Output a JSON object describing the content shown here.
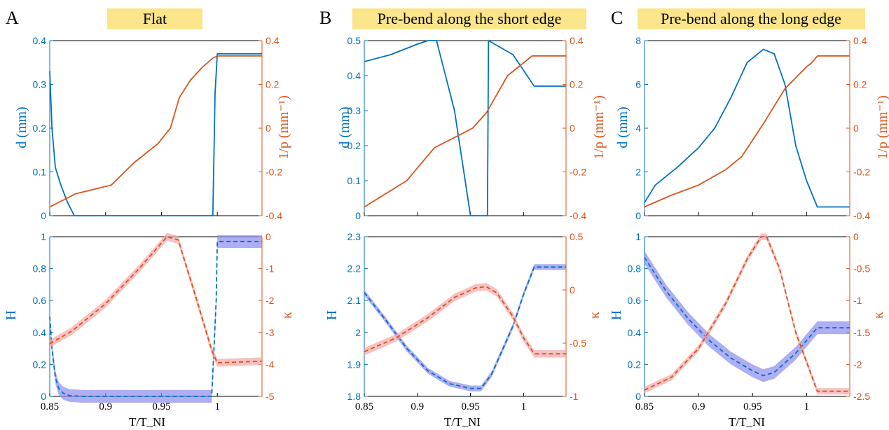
{
  "panels": [
    {
      "letter": "A",
      "title": "Flat"
    },
    {
      "letter": "B",
      "title": "Pre-bend along the short edge"
    },
    {
      "letter": "C",
      "title": "Pre-bend along the long edge"
    }
  ],
  "labels": {
    "d_axis": "d (mm)",
    "p_axis": "1/p (mm⁻¹)",
    "H_axis": "H",
    "kappa_axis": "κ",
    "x_axis": "T/T_NI"
  },
  "colors": {
    "blue": "#0072bd",
    "orange": "#d95319",
    "band_blue": "#8c8cf0",
    "band_red": "#f4a6a6",
    "title_bg": "#fbe58b"
  },
  "chart_data": [
    {
      "type": "line",
      "panel": "A",
      "row": "top",
      "xlim": [
        0.85,
        1.04
      ],
      "xticks": [
        "0.85",
        "0.9",
        "0.95",
        "1"
      ],
      "ylim_left": [
        0,
        0.4
      ],
      "yticks_left": [
        "0",
        "0.1",
        "0.2",
        "0.3",
        "0.4"
      ],
      "ylim_right": [
        -0.4,
        0.4
      ],
      "yticks_right": [
        "-0.4",
        "-0.2",
        "0",
        "0.2",
        "0.4"
      ],
      "series": [
        {
          "axis": "left",
          "style": "solid",
          "x": [
            0.85,
            0.852,
            0.855,
            0.86,
            0.866,
            0.872,
            0.88,
            0.9,
            0.95,
            0.99,
            0.996,
            0.998,
            1.0,
            1.04
          ],
          "y": [
            0.33,
            0.2,
            0.11,
            0.07,
            0.03,
            0.0,
            0.0,
            0.0,
            0.0,
            0.0,
            0.0,
            0.28,
            0.37,
            0.37
          ]
        },
        {
          "axis": "right",
          "style": "solid",
          "x": [
            0.85,
            0.873,
            0.905,
            0.925,
            0.947,
            0.958,
            0.966,
            0.976,
            0.987,
            0.996,
            1.0,
            1.04
          ],
          "y": [
            -0.36,
            -0.3,
            -0.26,
            -0.16,
            -0.07,
            0.0,
            0.14,
            0.22,
            0.28,
            0.32,
            0.33,
            0.33
          ]
        }
      ]
    },
    {
      "type": "line",
      "panel": "A",
      "row": "bottom",
      "xlim": [
        0.85,
        1.04
      ],
      "xticks": [
        "0.85",
        "0.9",
        "0.95",
        "1"
      ],
      "ylim_left": [
        0,
        1
      ],
      "yticks_left": [
        "0",
        "0.2",
        "0.4",
        "0.6",
        "0.8",
        "1"
      ],
      "ylim_right": [
        -5,
        0
      ],
      "yticks_right": [
        "-5",
        "-4",
        "-3",
        "-2",
        "-1",
        "0"
      ],
      "series": [
        {
          "axis": "left",
          "style": "dashed",
          "band_color": "#8c8cf0",
          "band": 0.04,
          "x": [
            0.85,
            0.852,
            0.855,
            0.858,
            0.862,
            0.868,
            0.88,
            0.9,
            0.95,
            0.99,
            0.995,
            0.999,
            1.0,
            1.04
          ],
          "y": [
            0.5,
            0.3,
            0.12,
            0.05,
            0.02,
            0.005,
            0.0,
            0.0,
            0.0,
            0.0,
            0.0,
            0.6,
            0.97,
            0.97
          ]
        },
        {
          "axis": "right",
          "style": "dashed",
          "band_color": "#f4a6a6",
          "band": 0.12,
          "x": [
            0.85,
            0.87,
            0.9,
            0.93,
            0.955,
            0.965,
            0.98,
            0.995,
            1.0,
            1.04
          ],
          "y": [
            -3.35,
            -2.95,
            -2.1,
            -1.0,
            0.0,
            -0.1,
            -1.8,
            -3.55,
            -3.95,
            -3.9
          ]
        }
      ]
    },
    {
      "type": "line",
      "panel": "B",
      "row": "top",
      "xlim": [
        0.85,
        1.04
      ],
      "xticks": [
        "0.85",
        "0.9",
        "0.95",
        "1"
      ],
      "ylim_left": [
        0,
        0.5
      ],
      "yticks_left": [
        "0",
        "0.1",
        "0.2",
        "0.3",
        "0.4",
        "0.5"
      ],
      "ylim_right": [
        -0.4,
        0.4
      ],
      "yticks_right": [
        "-0.4",
        "-0.2",
        "0",
        "0.2",
        "0.4"
      ],
      "series": [
        {
          "axis": "left",
          "style": "solid",
          "x": [
            0.85,
            0.875,
            0.9,
            0.91,
            0.918,
            0.935,
            0.95,
            0.953,
            0.966,
            0.967,
            0.99,
            1.01,
            1.04
          ],
          "y": [
            0.44,
            0.46,
            0.49,
            0.5,
            0.5,
            0.3,
            0.0,
            0.0,
            0.0,
            0.5,
            0.46,
            0.37,
            0.37
          ]
        },
        {
          "axis": "right",
          "style": "solid",
          "x": [
            0.85,
            0.89,
            0.916,
            0.94,
            0.952,
            0.965,
            0.985,
            1.008,
            1.04
          ],
          "y": [
            -0.36,
            -0.24,
            -0.09,
            -0.03,
            0.0,
            0.07,
            0.24,
            0.33,
            0.33
          ]
        }
      ]
    },
    {
      "type": "line",
      "panel": "B",
      "row": "bottom",
      "xlim": [
        0.85,
        1.04
      ],
      "xticks": [
        "0.85",
        "0.9",
        "0.95",
        "1"
      ],
      "ylim_left": [
        1.8,
        2.3
      ],
      "yticks_left": [
        "1.8",
        "1.9",
        "2",
        "2.1",
        "2.2",
        "2.3"
      ],
      "ylim_right": [
        -1,
        0.5
      ],
      "yticks_right": [
        "-1",
        "-0.5",
        "0",
        "0.5"
      ],
      "series": [
        {
          "axis": "left",
          "style": "dashed",
          "band_color": "#8c8cf0",
          "band": 0.009,
          "x": [
            0.85,
            0.87,
            0.89,
            0.91,
            0.93,
            0.95,
            0.96,
            0.97,
            0.99,
            1.0,
            1.01,
            1.04
          ],
          "y": [
            2.125,
            2.04,
            1.95,
            1.88,
            1.84,
            1.825,
            1.825,
            1.87,
            2.02,
            2.12,
            2.205,
            2.205
          ]
        },
        {
          "axis": "right",
          "style": "dashed",
          "band_color": "#f4a6a6",
          "band": 0.035,
          "x": [
            0.85,
            0.88,
            0.91,
            0.935,
            0.955,
            0.965,
            0.975,
            0.99,
            1.0,
            1.01,
            1.04
          ],
          "y": [
            -0.58,
            -0.45,
            -0.26,
            -0.07,
            0.02,
            0.03,
            -0.03,
            -0.25,
            -0.45,
            -0.6,
            -0.6
          ]
        }
      ]
    },
    {
      "type": "line",
      "panel": "C",
      "row": "top",
      "xlim": [
        0.85,
        1.04
      ],
      "xticks": [
        "0.85",
        "0.9",
        "0.95",
        "1"
      ],
      "ylim_left": [
        0,
        8
      ],
      "yticks_left": [
        "0",
        "2",
        "4",
        "6",
        "8"
      ],
      "ylim_right": [
        -0.4,
        0.4
      ],
      "yticks_right": [
        "-0.4",
        "-0.2",
        "0",
        "0.2",
        "0.4"
      ],
      "series": [
        {
          "axis": "left",
          "style": "solid",
          "x": [
            0.85,
            0.86,
            0.88,
            0.9,
            0.915,
            0.93,
            0.945,
            0.96,
            0.97,
            0.98,
            0.99,
            1.0,
            1.01,
            1.04
          ],
          "y": [
            0.6,
            1.4,
            2.2,
            3.1,
            4.0,
            5.4,
            7.0,
            7.6,
            7.4,
            6.0,
            3.2,
            1.6,
            0.4,
            0.4
          ]
        },
        {
          "axis": "right",
          "style": "solid",
          "x": [
            0.85,
            0.873,
            0.9,
            0.925,
            0.94,
            0.96,
            0.98,
            1.0,
            1.005,
            1.01,
            1.04
          ],
          "y": [
            -0.36,
            -0.31,
            -0.26,
            -0.19,
            -0.13,
            0.02,
            0.18,
            0.28,
            0.3,
            0.33,
            0.33
          ]
        }
      ]
    },
    {
      "type": "line",
      "panel": "C",
      "row": "bottom",
      "xlim": [
        0.85,
        1.04
      ],
      "xticks": [
        "0.85",
        "0.9",
        "0.95",
        "1"
      ],
      "ylim_left": [
        0,
        1
      ],
      "yticks_left": [
        "0",
        "0.2",
        "0.4",
        "0.6",
        "0.8",
        "1"
      ],
      "ylim_right": [
        -2.5,
        0
      ],
      "yticks_right": [
        "-2.5",
        "-2",
        "-1.5",
        "-1",
        "-0.5",
        "0"
      ],
      "series": [
        {
          "axis": "left",
          "style": "dashed",
          "band_color": "#8c8cf0",
          "band": 0.04,
          "x": [
            0.85,
            0.87,
            0.89,
            0.91,
            0.93,
            0.95,
            0.96,
            0.97,
            0.99,
            1.01,
            1.04
          ],
          "y": [
            0.87,
            0.66,
            0.49,
            0.35,
            0.24,
            0.16,
            0.13,
            0.15,
            0.27,
            0.43,
            0.43
          ]
        },
        {
          "axis": "right",
          "style": "dashed",
          "band_color": "#f4a6a6",
          "band": 0.05,
          "x": [
            0.85,
            0.875,
            0.9,
            0.925,
            0.945,
            0.958,
            0.963,
            0.975,
            0.99,
            1.01,
            1.04
          ],
          "y": [
            -2.4,
            -2.2,
            -1.75,
            -1.05,
            -0.35,
            0.0,
            0.0,
            -0.5,
            -1.5,
            -2.42,
            -2.42
          ]
        }
      ]
    }
  ]
}
